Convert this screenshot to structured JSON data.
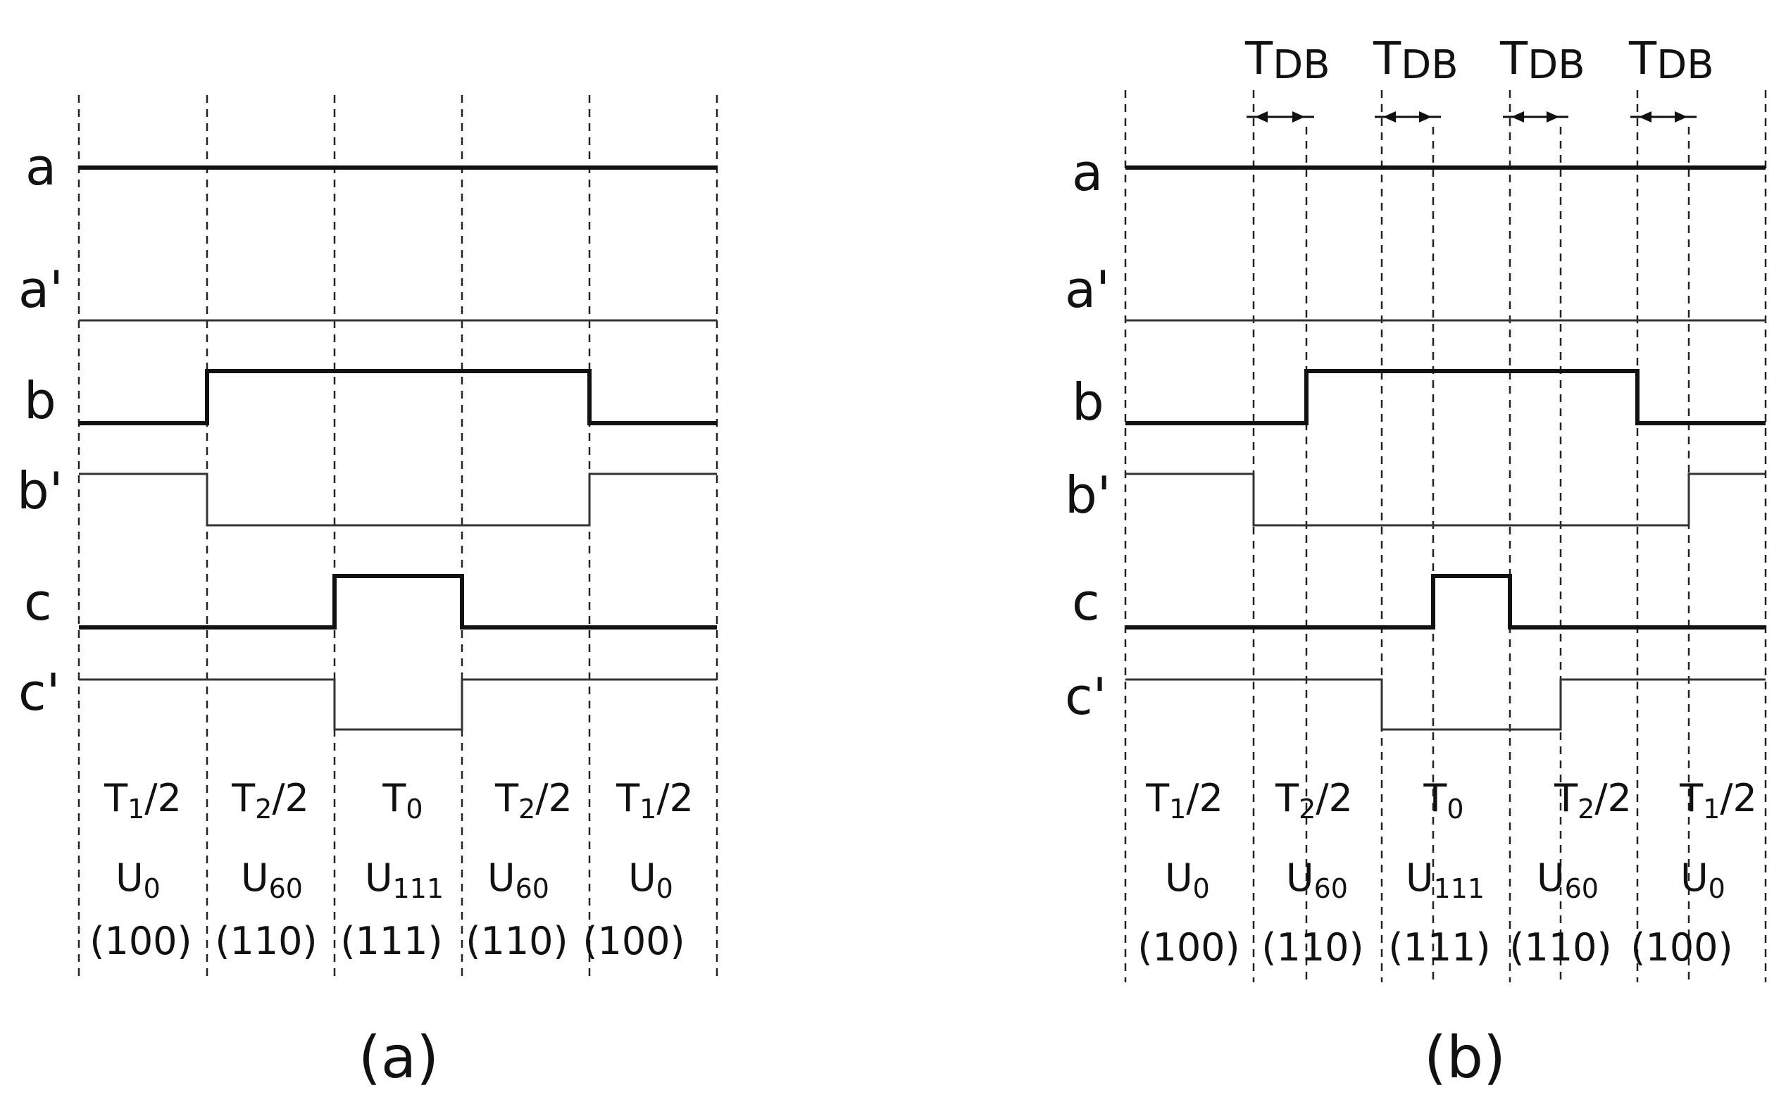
{
  "panels": [
    {
      "id": "a",
      "caption": "(a)",
      "signal_labels": [
        "a",
        "a'",
        "b",
        "b'",
        "c",
        "c'"
      ],
      "interval_labels": [
        {
          "time": [
            "T",
            "1",
            "/2"
          ],
          "vector": [
            "U",
            "0"
          ],
          "state": "(100)"
        },
        {
          "time": [
            "T",
            "2",
            "/2"
          ],
          "vector": [
            "U",
            "60"
          ],
          "state": "(110)"
        },
        {
          "time": [
            "T",
            "0",
            ""
          ],
          "vector": [
            "U",
            "111"
          ],
          "state": "(111)"
        },
        {
          "time": [
            "T",
            "2",
            "/2"
          ],
          "vector": [
            "U",
            "60"
          ],
          "state": "(110)"
        },
        {
          "time": [
            "T",
            "1",
            "/2"
          ],
          "vector": [
            "U",
            "0"
          ],
          "state": "(100)"
        }
      ]
    },
    {
      "id": "b",
      "caption": "(b)",
      "signal_labels": [
        "a",
        "a'",
        "b",
        "b'",
        "c",
        "c'"
      ],
      "deadband_label": [
        "T",
        "DB"
      ],
      "interval_labels": [
        {
          "time": [
            "T",
            "1",
            "/2"
          ],
          "vector": [
            "U",
            "0"
          ],
          "state": "(100)"
        },
        {
          "time": [
            "T",
            "2",
            "/2"
          ],
          "vector": [
            "U",
            "60"
          ],
          "state": "(110)"
        },
        {
          "time": [
            "T",
            "0",
            ""
          ],
          "vector": [
            "U",
            "111"
          ],
          "state": "(111)"
        },
        {
          "time": [
            "T",
            "2",
            "/2"
          ],
          "vector": [
            "U",
            "60"
          ],
          "state": "(110)"
        },
        {
          "time": [
            "T",
            "1",
            "/2"
          ],
          "vector": [
            "U",
            "0"
          ],
          "state": "(100)"
        }
      ]
    }
  ]
}
